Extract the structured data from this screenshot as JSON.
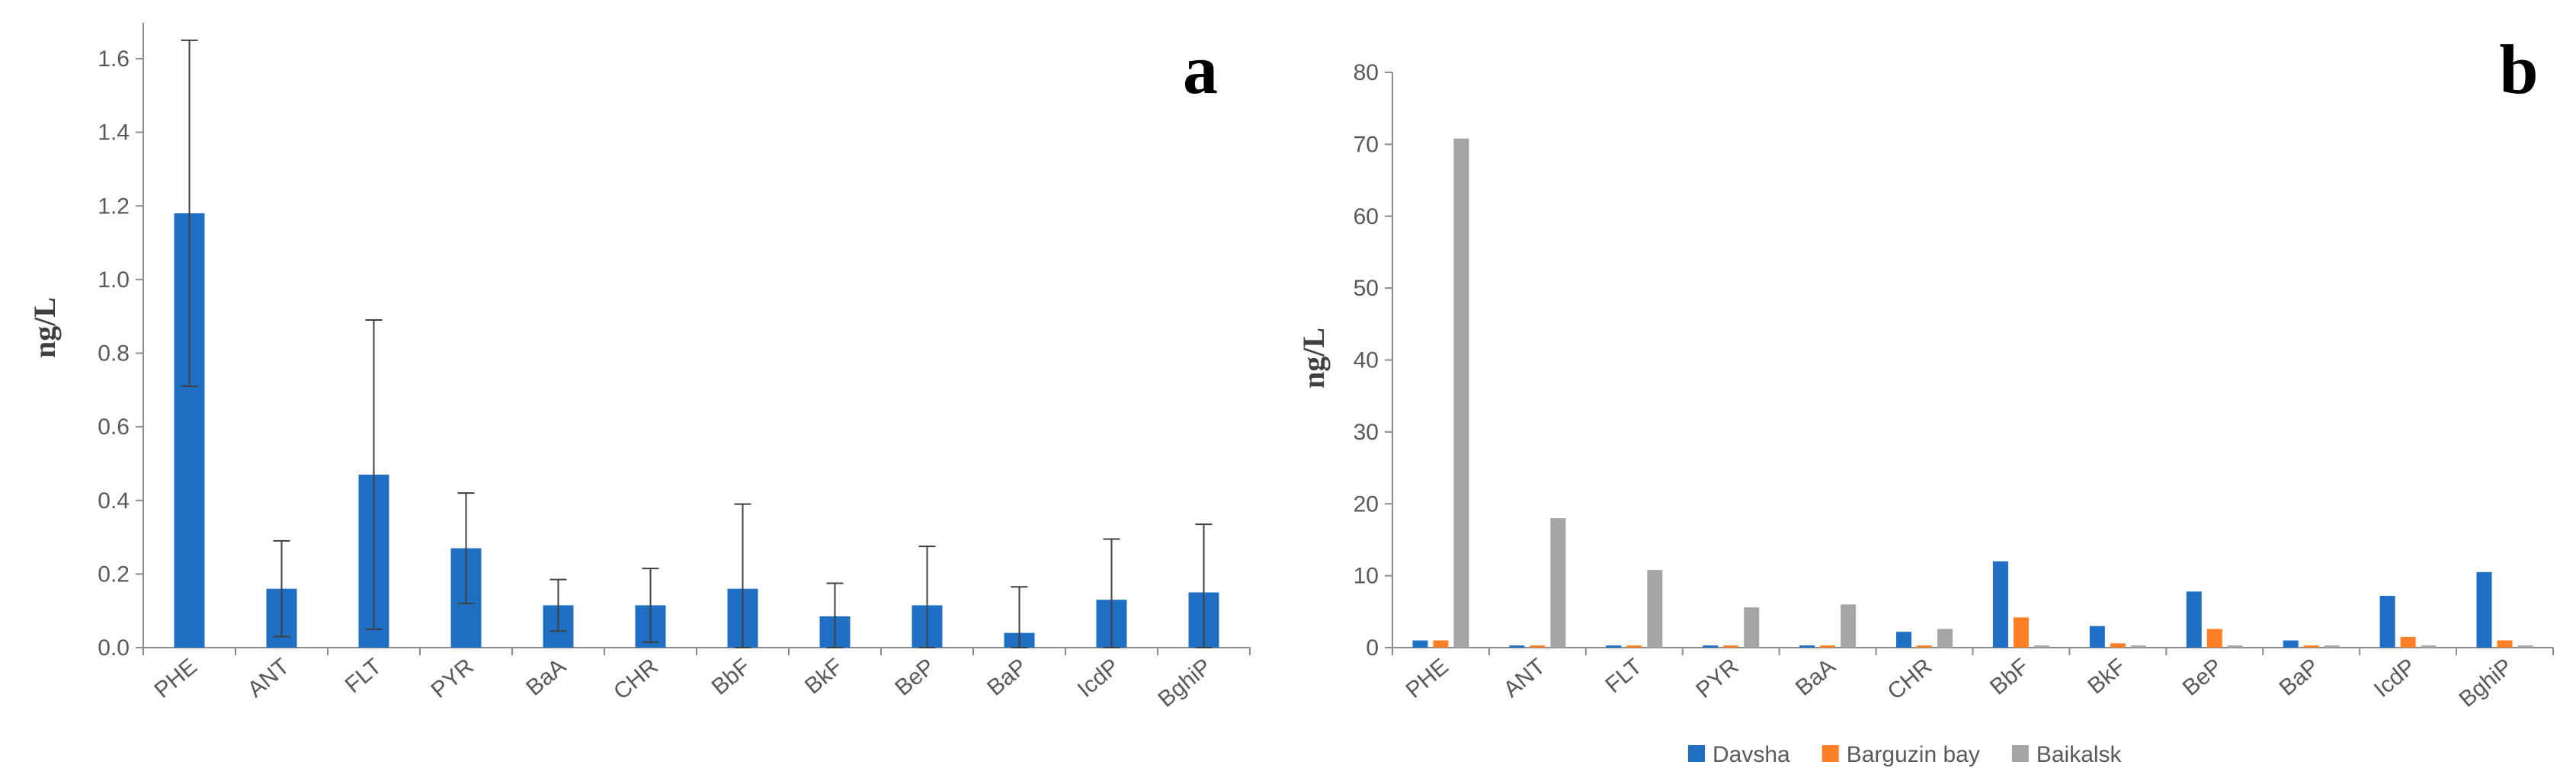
{
  "chart_data": [
    {
      "type": "bar",
      "panel_label": "a",
      "ylabel": "ng/L",
      "ylim": [
        0,
        1.6
      ],
      "yticks": [
        "0.0",
        "0.2",
        "0.4",
        "0.6",
        "0.8",
        "1.0",
        "1.2",
        "1.4",
        "1.6"
      ],
      "categories": [
        "PHE",
        "ANT",
        "FLT",
        "PYR",
        "BaA",
        "CHR",
        "BbF",
        "BkF",
        "BeP",
        "BaP",
        "IcdP",
        "BghiP"
      ],
      "values": [
        1.18,
        0.16,
        0.47,
        0.27,
        0.115,
        0.115,
        0.16,
        0.085,
        0.115,
        0.04,
        0.13,
        0.15
      ],
      "error_bars": [
        0.47,
        0.13,
        0.42,
        0.15,
        0.07,
        0.1,
        0.23,
        0.09,
        0.16,
        0.125,
        0.165,
        0.185
      ],
      "colors": {
        "bar": "#1f6fc5",
        "error": "#404040"
      },
      "grid": false
    },
    {
      "type": "bar",
      "panel_label": "b",
      "ylabel": "ng/L",
      "ylim": [
        0,
        80
      ],
      "yticks": [
        "0",
        "10",
        "20",
        "30",
        "40",
        "50",
        "60",
        "70",
        "80"
      ],
      "categories": [
        "PHE",
        "ANT",
        "FLT",
        "PYR",
        "BaA",
        "CHR",
        "BbF",
        "BkF",
        "BeP",
        "BaP",
        "IcdP",
        "BghiP"
      ],
      "series": [
        {
          "name": "Davsha",
          "color": "#1f6fc5",
          "values": [
            1.0,
            0.3,
            0.3,
            0.3,
            0.3,
            2.2,
            12.0,
            3.0,
            7.8,
            1.0,
            7.2,
            10.5
          ]
        },
        {
          "name": "Barguzin bay",
          "color": "#ff7f27",
          "values": [
            1.0,
            0.3,
            0.3,
            0.3,
            0.3,
            0.3,
            4.2,
            0.6,
            2.6,
            0.3,
            1.5,
            1.0
          ]
        },
        {
          "name": "Baikalsk",
          "color": "#a5a5a5",
          "values": [
            70.8,
            18.0,
            10.8,
            5.6,
            6.0,
            2.6,
            0.3,
            0.3,
            0.3,
            0.3,
            0.3,
            0.3
          ]
        }
      ],
      "legend_position": "bottom",
      "grid": false
    }
  ]
}
